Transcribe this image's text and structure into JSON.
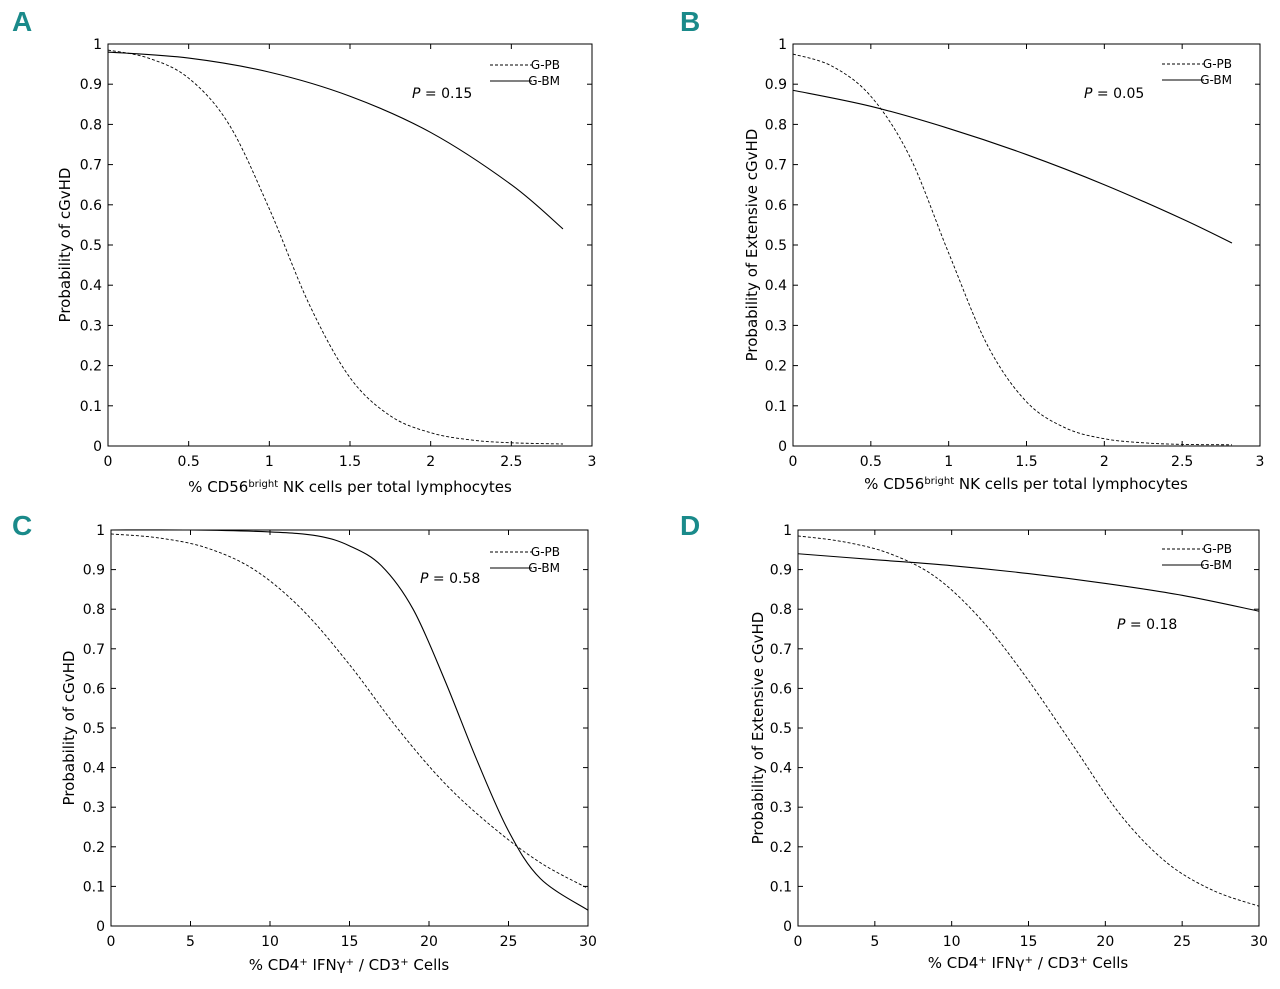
{
  "chart_data": [
    {
      "panel": "A",
      "type": "line",
      "xlabel": {
        "prefix": "% CD56",
        "sup": "bright",
        "suffix": " NK cells per total lymphocytes"
      },
      "ylabel": "Probability of cGvHD",
      "xlim": [
        0,
        3
      ],
      "ylim": [
        0,
        1
      ],
      "xticks": [
        0,
        0.5,
        1,
        1.5,
        2,
        2.5,
        3
      ],
      "yticks": [
        0,
        0.1,
        0.2,
        0.3,
        0.4,
        0.5,
        0.6,
        0.7,
        0.8,
        0.9,
        1
      ],
      "legend": [
        "G-PB",
        "G-BM"
      ],
      "annotation": {
        "p": "P",
        "rest": " = 0.15"
      },
      "series": [
        {
          "name": "G-PB",
          "style": "dashed",
          "x": [
            0,
            0.25,
            0.5,
            0.75,
            1,
            1.25,
            1.5,
            1.75,
            2,
            2.25,
            2.5,
            2.82
          ],
          "y": [
            0.985,
            0.965,
            0.915,
            0.8,
            0.59,
            0.35,
            0.17,
            0.075,
            0.033,
            0.015,
            0.008,
            0.005
          ]
        },
        {
          "name": "G-BM",
          "style": "solid",
          "x": [
            0,
            0.5,
            1,
            1.5,
            2,
            2.5,
            2.82
          ],
          "y": [
            0.98,
            0.965,
            0.93,
            0.87,
            0.78,
            0.65,
            0.54
          ]
        }
      ]
    },
    {
      "panel": "B",
      "type": "line",
      "xlabel": {
        "prefix": "% CD56",
        "sup": "bright",
        "suffix": " NK cells per total lymphocytes"
      },
      "ylabel": "Probability of Extensive cGvHD",
      "xlim": [
        0,
        3
      ],
      "ylim": [
        0,
        1
      ],
      "xticks": [
        0,
        0.5,
        1,
        1.5,
        2,
        2.5,
        3
      ],
      "yticks": [
        0,
        0.1,
        0.2,
        0.3,
        0.4,
        0.5,
        0.6,
        0.7,
        0.8,
        0.9,
        1
      ],
      "legend": [
        "G-PB",
        "G-BM"
      ],
      "annotation": {
        "p": "P",
        "rest": " = 0.05"
      },
      "series": [
        {
          "name": "G-PB",
          "style": "dashed",
          "x": [
            0,
            0.25,
            0.5,
            0.75,
            1,
            1.25,
            1.5,
            1.75,
            2,
            2.25,
            2.5,
            2.82
          ],
          "y": [
            0.975,
            0.945,
            0.87,
            0.72,
            0.48,
            0.25,
            0.11,
            0.045,
            0.018,
            0.008,
            0.004,
            0.003
          ]
        },
        {
          "name": "G-BM",
          "style": "solid",
          "x": [
            0,
            0.5,
            1,
            1.5,
            2,
            2.5,
            2.82
          ],
          "y": [
            0.885,
            0.845,
            0.79,
            0.725,
            0.65,
            0.565,
            0.505
          ]
        }
      ]
    },
    {
      "panel": "C",
      "type": "line",
      "xlabel": {
        "p1": "% CD4",
        "s1": "+",
        "p2": " IFNγ",
        "s2": "+",
        "p3": " / CD3",
        "s3": "+",
        "p4": " Cells"
      },
      "ylabel": "Probability of cGvHD",
      "xlim": [
        0,
        30
      ],
      "ylim": [
        0,
        1
      ],
      "xticks": [
        0,
        5,
        10,
        15,
        20,
        25,
        30
      ],
      "yticks": [
        0,
        0.1,
        0.2,
        0.3,
        0.4,
        0.5,
        0.6,
        0.7,
        0.8,
        0.9,
        1
      ],
      "legend": [
        "G-PB",
        "G-BM"
      ],
      "annotation": {
        "p": "P",
        "rest": " = 0.58"
      },
      "series": [
        {
          "name": "G-PB",
          "style": "dashed",
          "x": [
            0,
            3,
            6,
            9,
            12,
            15,
            18,
            21,
            24,
            27,
            30
          ],
          "y": [
            0.99,
            0.98,
            0.955,
            0.9,
            0.8,
            0.66,
            0.5,
            0.36,
            0.25,
            0.16,
            0.095
          ]
        },
        {
          "name": "G-BM",
          "style": "solid",
          "x": [
            0,
            5,
            10,
            13,
            15,
            17,
            19,
            21,
            23,
            25,
            27,
            30
          ],
          "y": [
            1.0,
            1.0,
            0.995,
            0.985,
            0.96,
            0.91,
            0.8,
            0.62,
            0.42,
            0.24,
            0.12,
            0.04
          ]
        }
      ]
    },
    {
      "panel": "D",
      "type": "line",
      "xlabel": {
        "p1": "% CD4",
        "s1": "+",
        "p2": " IFNγ",
        "s2": "+",
        "p3": " / CD3",
        "s3": "+",
        "p4": " Cells"
      },
      "ylabel": "Probability of Extensive cGvHD",
      "xlim": [
        0,
        30
      ],
      "ylim": [
        0,
        1
      ],
      "xticks": [
        0,
        5,
        10,
        15,
        20,
        25,
        30
      ],
      "yticks": [
        0,
        0.1,
        0.2,
        0.3,
        0.4,
        0.5,
        0.6,
        0.7,
        0.8,
        0.9,
        1
      ],
      "legend": [
        "G-PB",
        "G-BM"
      ],
      "annotation": {
        "p": "P",
        "rest": " = 0.18"
      },
      "series": [
        {
          "name": "G-PB",
          "style": "dashed",
          "x": [
            0,
            3,
            6,
            9,
            12,
            15,
            18,
            21,
            24,
            27,
            30
          ],
          "y": [
            0.985,
            0.97,
            0.94,
            0.88,
            0.77,
            0.62,
            0.45,
            0.28,
            0.16,
            0.09,
            0.05
          ]
        },
        {
          "name": "G-BM",
          "style": "solid",
          "x": [
            0,
            5,
            10,
            15,
            20,
            25,
            30
          ],
          "y": [
            0.94,
            0.925,
            0.91,
            0.89,
            0.865,
            0.835,
            0.795
          ]
        }
      ]
    }
  ]
}
